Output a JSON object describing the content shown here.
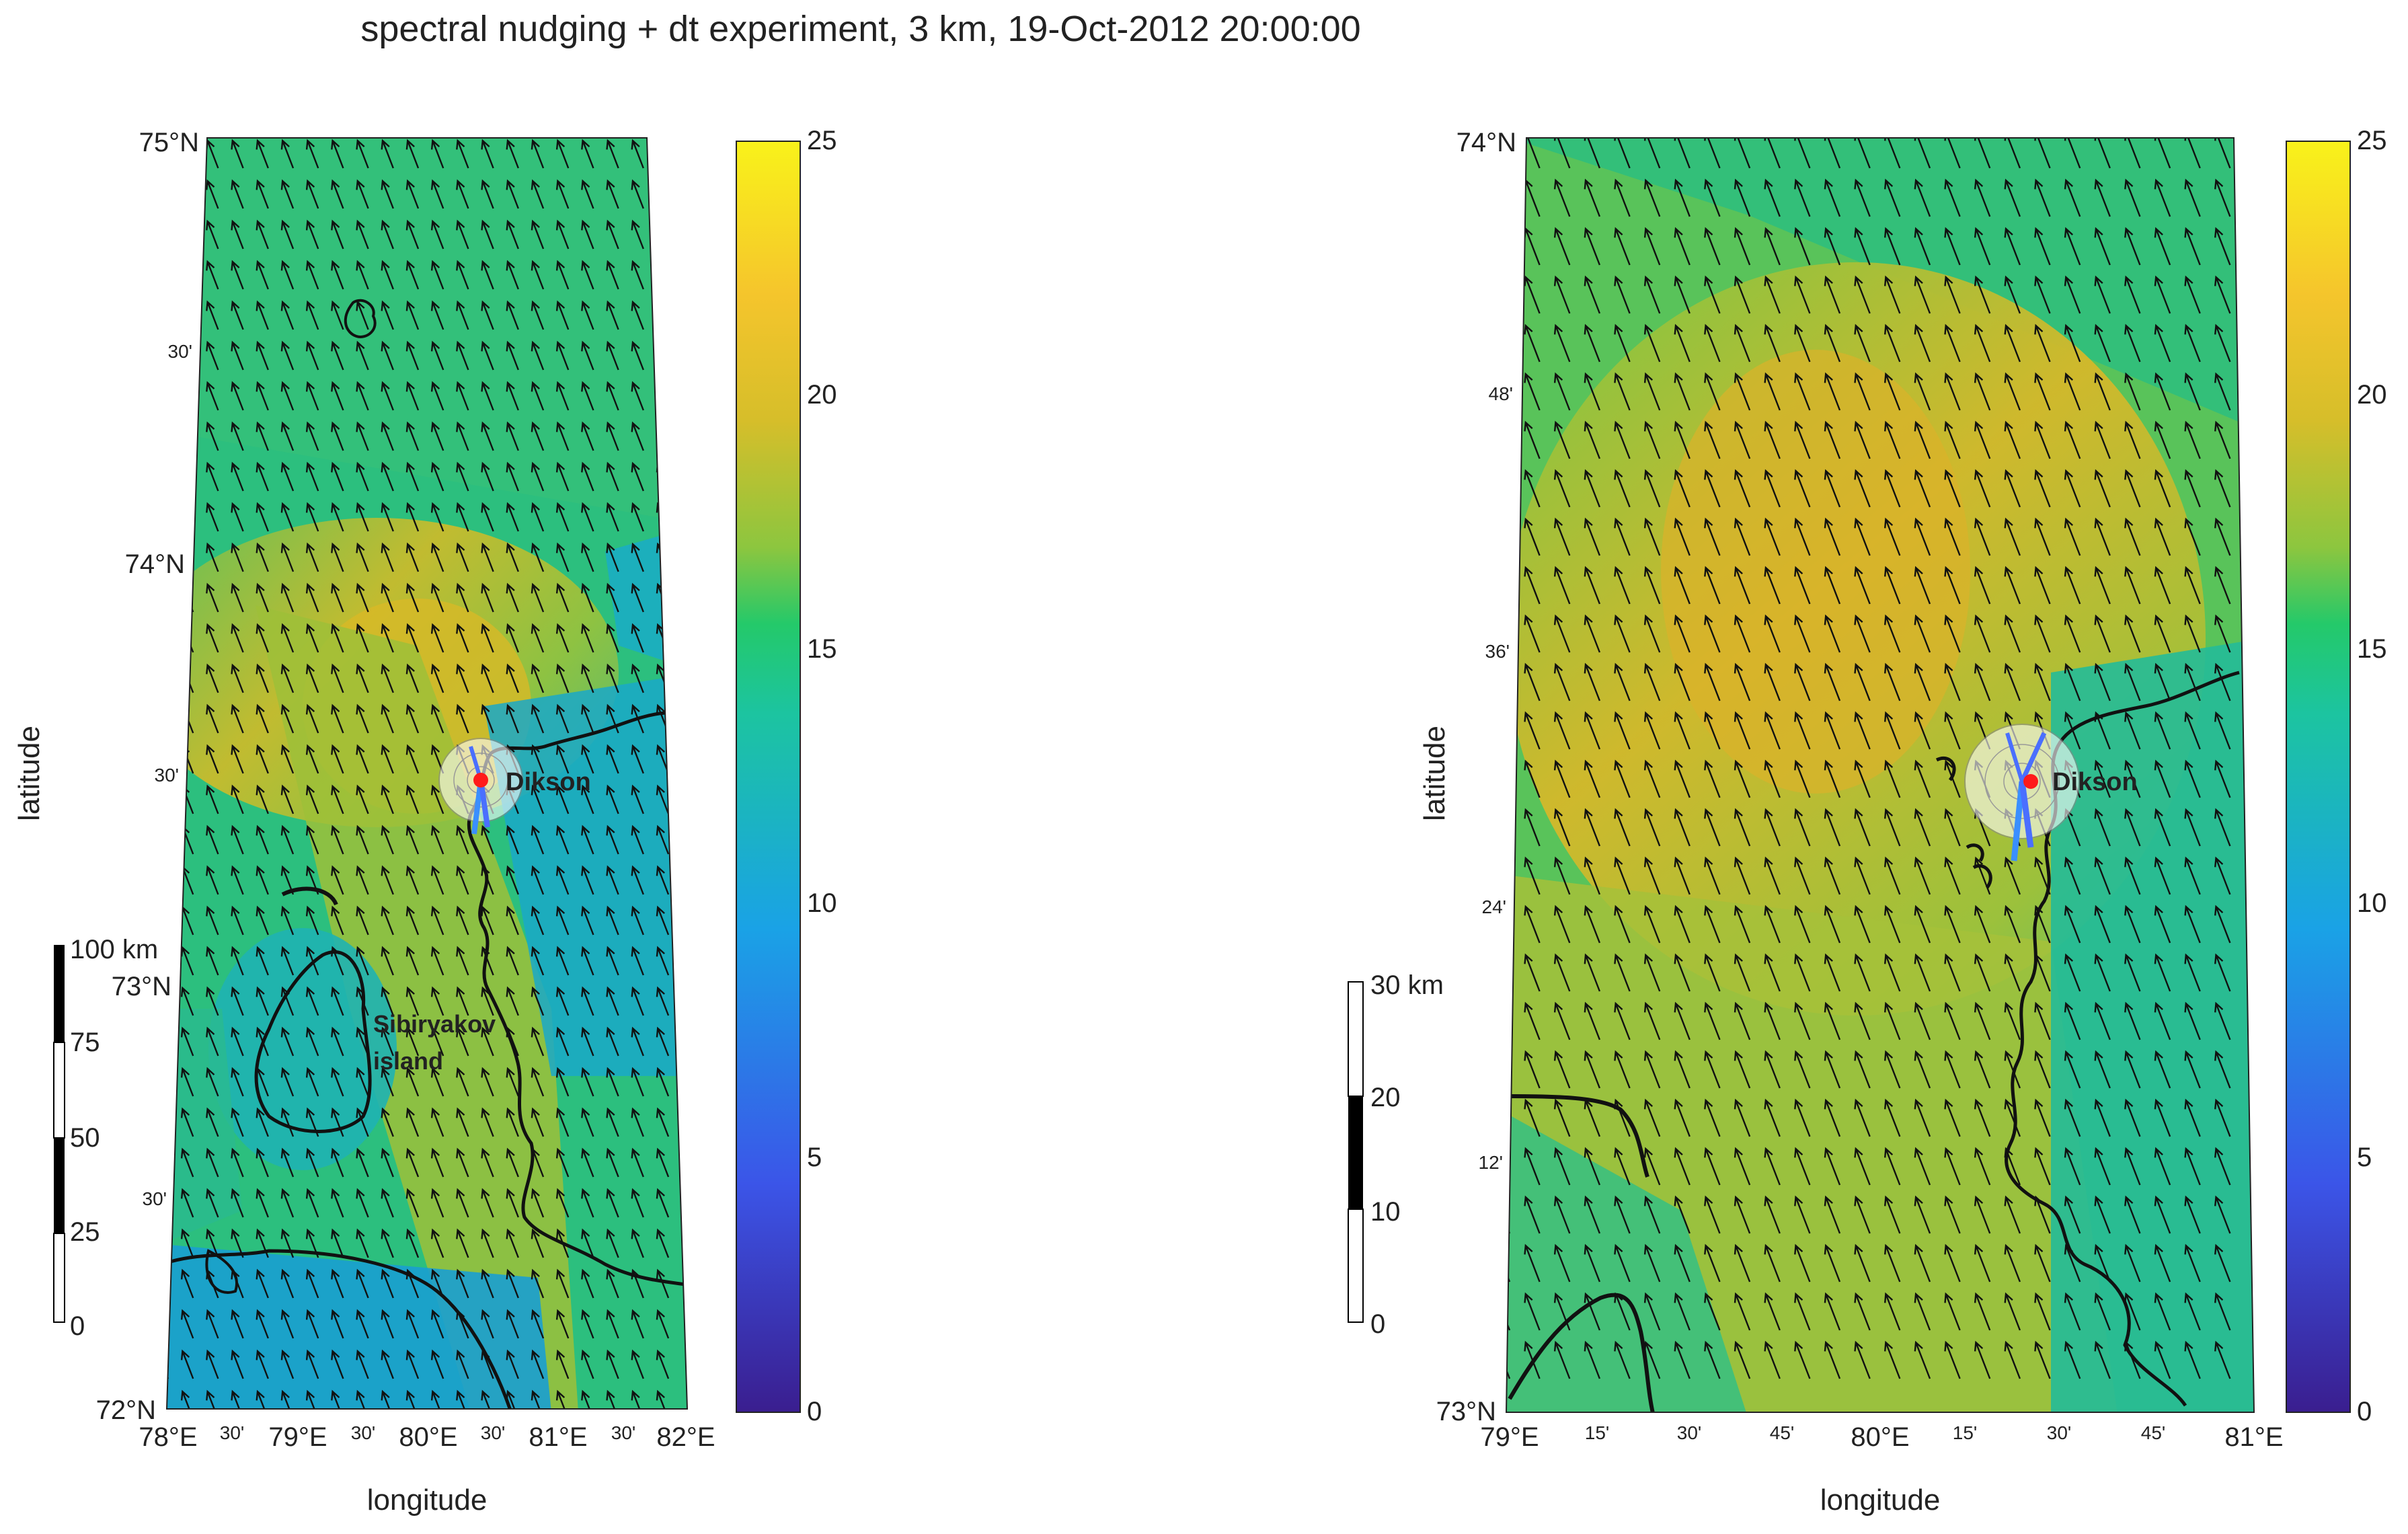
{
  "title": "spectral nudging + dt experiment, 3 km, 19-Oct-2012 20:00:00",
  "station": {
    "name": "Dikson",
    "color": "#ff1a1a"
  },
  "island_label": [
    "Sibiryakov",
    "island"
  ],
  "colorbar": {
    "ticks": [
      "0",
      "5",
      "10",
      "15",
      "20",
      "25"
    ],
    "colors": [
      "#3a1e8f",
      "#3b55e8",
      "#1aa2e6",
      "#1cc4a0",
      "#24c96a",
      "#8cc63f",
      "#d6be2a",
      "#f5c52c",
      "#f9f21a"
    ]
  },
  "left_map": {
    "xlabel": "longitude",
    "ylabel": "latitude",
    "lat_labels": [
      "75°N",
      "30'",
      "74°N",
      "30'",
      "73°N",
      "30'",
      "72°N"
    ],
    "lon_labels": [
      "78°E",
      "30'",
      "79°E",
      "30'",
      "80°E",
      "30'",
      "81°E",
      "30'",
      "82°E"
    ],
    "scalebar": {
      "labels": [
        "100 km",
        "75",
        "50",
        "25",
        "0"
      ]
    }
  },
  "right_map": {
    "xlabel": "longitude",
    "ylabel": "latitude",
    "lat_labels": [
      "74°N",
      "48'",
      "36'",
      "24'",
      "12'",
      "73°N"
    ],
    "lon_labels": [
      "79°E",
      "15'",
      "30'",
      "45'",
      "80°E",
      "15'",
      "30'",
      "45'",
      "81°E"
    ],
    "scalebar": {
      "labels": [
        "30 km",
        "20",
        "10",
        "0"
      ]
    }
  }
}
